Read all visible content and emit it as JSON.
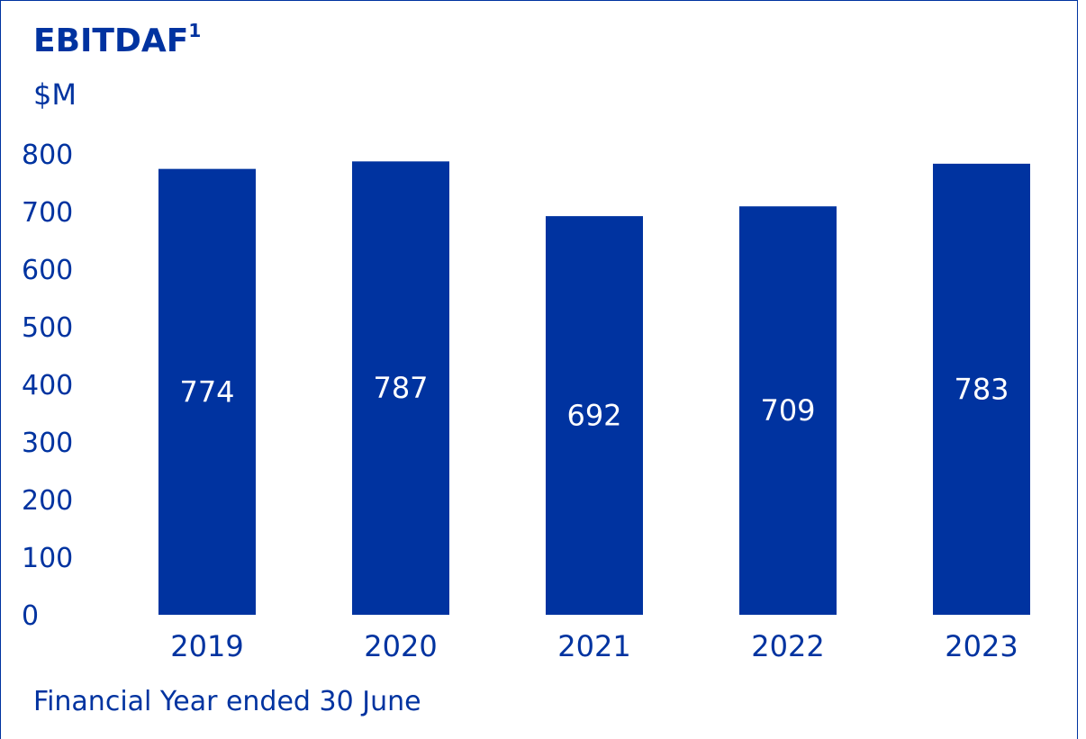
{
  "chart_data": {
    "type": "bar",
    "title": "EBITDAF",
    "title_superscript": "1",
    "ylabel": "$M",
    "xlabel": "Financial Year ended 30 June",
    "categories": [
      "2019",
      "2020",
      "2021",
      "2022",
      "2023"
    ],
    "values": [
      774,
      787,
      692,
      709,
      783
    ],
    "data_labels": [
      "774",
      "787",
      "692",
      "709",
      "783"
    ],
    "yticks": [
      "0",
      "100",
      "200",
      "300",
      "400",
      "500",
      "600",
      "700",
      "800"
    ],
    "ylim": [
      0,
      800
    ],
    "grid": false,
    "legend": "none",
    "bar_color": "#0033A0",
    "text_color": "#0033A0",
    "label_color": "#FFFFFF"
  }
}
